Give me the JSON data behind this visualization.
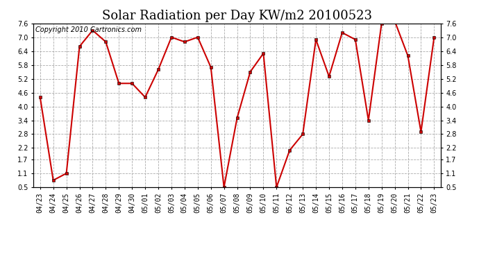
{
  "title": "Solar Radiation per Day KW/m2 20100523",
  "copyright": "Copyright 2010 Cartronics.com",
  "dates": [
    "04/23",
    "04/24",
    "04/25",
    "04/26",
    "04/27",
    "04/28",
    "04/29",
    "04/30",
    "05/01",
    "05/02",
    "05/03",
    "05/04",
    "05/05",
    "05/06",
    "05/07",
    "05/08",
    "05/09",
    "05/10",
    "05/11",
    "05/12",
    "05/13",
    "05/14",
    "05/15",
    "05/16",
    "05/17",
    "05/18",
    "05/19",
    "05/20",
    "05/21",
    "05/22",
    "05/23"
  ],
  "values": [
    4.4,
    0.8,
    1.1,
    6.6,
    7.3,
    6.8,
    5.0,
    5.0,
    4.4,
    5.6,
    7.0,
    6.8,
    7.0,
    5.7,
    0.5,
    3.5,
    5.5,
    6.3,
    0.5,
    2.1,
    2.8,
    6.9,
    5.3,
    7.2,
    6.9,
    3.4,
    7.6,
    7.7,
    6.2,
    2.9,
    7.0
  ],
  "line_color": "#cc0000",
  "marker": "s",
  "marker_size": 2.5,
  "bg_color": "#ffffff",
  "plot_bg_color": "#ffffff",
  "grid_color": "#aaaaaa",
  "yticks": [
    0.5,
    1.1,
    1.7,
    2.2,
    2.8,
    3.4,
    4.0,
    4.6,
    5.2,
    5.8,
    6.4,
    7.0,
    7.6
  ],
  "ymin": 0.5,
  "ymax": 7.6,
  "title_fontsize": 13,
  "copyright_fontsize": 7,
  "tick_fontsize": 7,
  "border_color": "#000000",
  "linewidth": 1.5
}
